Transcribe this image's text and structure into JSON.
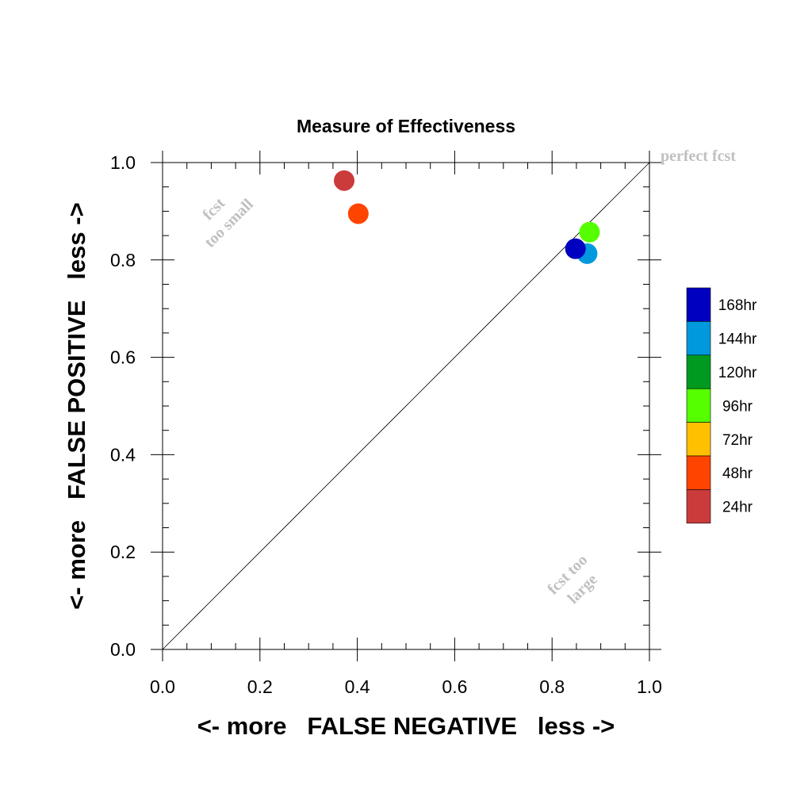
{
  "chart_data": {
    "type": "scatter",
    "title": "Measure of Effectiveness",
    "xlabel": "<- more   FALSE NEGATIVE   less ->",
    "ylabel": "<- more   FALSE POSITIVE   less ->",
    "xlim": [
      0,
      1
    ],
    "ylim": [
      0,
      1
    ],
    "x_ticks": [
      "0.0",
      "0.2",
      "0.4",
      "0.6",
      "0.8",
      "1.0"
    ],
    "y_ticks": [
      "0.0",
      "0.2",
      "0.4",
      "0.6",
      "0.8",
      "1.0"
    ],
    "grid": false,
    "diagonal_line": true,
    "annotations": {
      "perfect": "perfect fcst",
      "too_small_1": "fcst",
      "too_small_2": "too small",
      "too_large_1": "fcst too",
      "too_large_2": "large"
    },
    "legend": {
      "placement": "right",
      "entries": [
        {
          "label": "168hr",
          "color": "#0000c0"
        },
        {
          "label": "144hr",
          "color": "#0099dd"
        },
        {
          "label": "120hr",
          "color": "#009a20"
        },
        {
          "label": "96hr",
          "color": "#55ff00"
        },
        {
          "label": "72hr",
          "color": "#ffc000"
        },
        {
          "label": "48hr",
          "color": "#ff4400"
        },
        {
          "label": "24hr",
          "color": "#cc3b3b"
        }
      ]
    },
    "series": [
      {
        "name": "24hr",
        "x": 0.373,
        "y": 0.963,
        "color": "#cc3b3b"
      },
      {
        "name": "48hr",
        "x": 0.402,
        "y": 0.895,
        "color": "#ff4400"
      },
      {
        "name": "96hr",
        "x": 0.877,
        "y": 0.857,
        "color": "#55ff00"
      },
      {
        "name": "144hr",
        "x": 0.872,
        "y": 0.813,
        "color": "#0099dd"
      },
      {
        "name": "168hr",
        "x": 0.848,
        "y": 0.823,
        "color": "#0000c0"
      }
    ]
  }
}
